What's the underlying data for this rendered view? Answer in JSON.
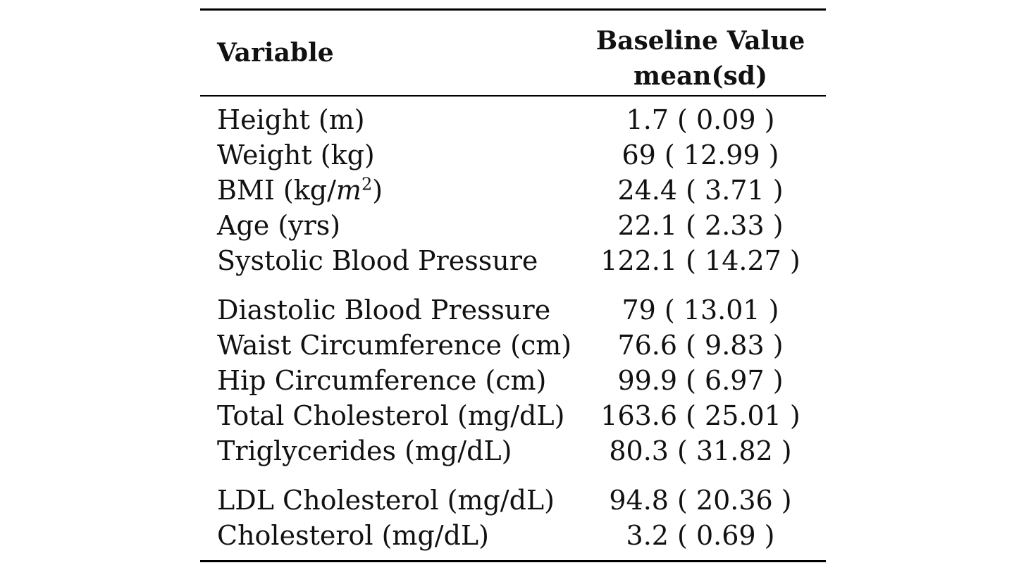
{
  "table": {
    "headers": {
      "variable": "Variable",
      "value_line1": "Baseline Value",
      "value_line2": "mean(sd)"
    },
    "rows": [
      {
        "variable": "Height (m)",
        "value": "1.7 ( 0.09 )"
      },
      {
        "variable": "Weight (kg)",
        "value": "69 ( 12.99 )"
      },
      {
        "variable_prefix": "BMI (kg/",
        "variable_math": "m",
        "variable_sup": "2",
        "variable_suffix": ")",
        "value": "24.4 ( 3.71 )"
      },
      {
        "variable": "Age (yrs)",
        "value": "22.1 ( 2.33 )"
      },
      {
        "variable": "Systolic Blood Pressure",
        "value": "122.1 ( 14.27 )"
      },
      {
        "variable": "Diastolic Blood Pressure",
        "value": "79 ( 13.01 )"
      },
      {
        "variable": "Waist Circumference (cm)",
        "value": "76.6 ( 9.83 )"
      },
      {
        "variable": "Hip Circumference (cm)",
        "value": "99.9 ( 6.97 )"
      },
      {
        "variable": "Total Cholesterol (mg/dL)",
        "value": "163.6 ( 25.01 )"
      },
      {
        "variable": "Triglycerides (mg/dL)",
        "value": "80.3 ( 31.82 )"
      },
      {
        "variable": "LDL Cholesterol (mg/dL)",
        "value": "94.8 ( 20.36 )"
      },
      {
        "variable": "Cholesterol (mg/dL)",
        "value": "3.2 ( 0.69 )"
      }
    ]
  }
}
